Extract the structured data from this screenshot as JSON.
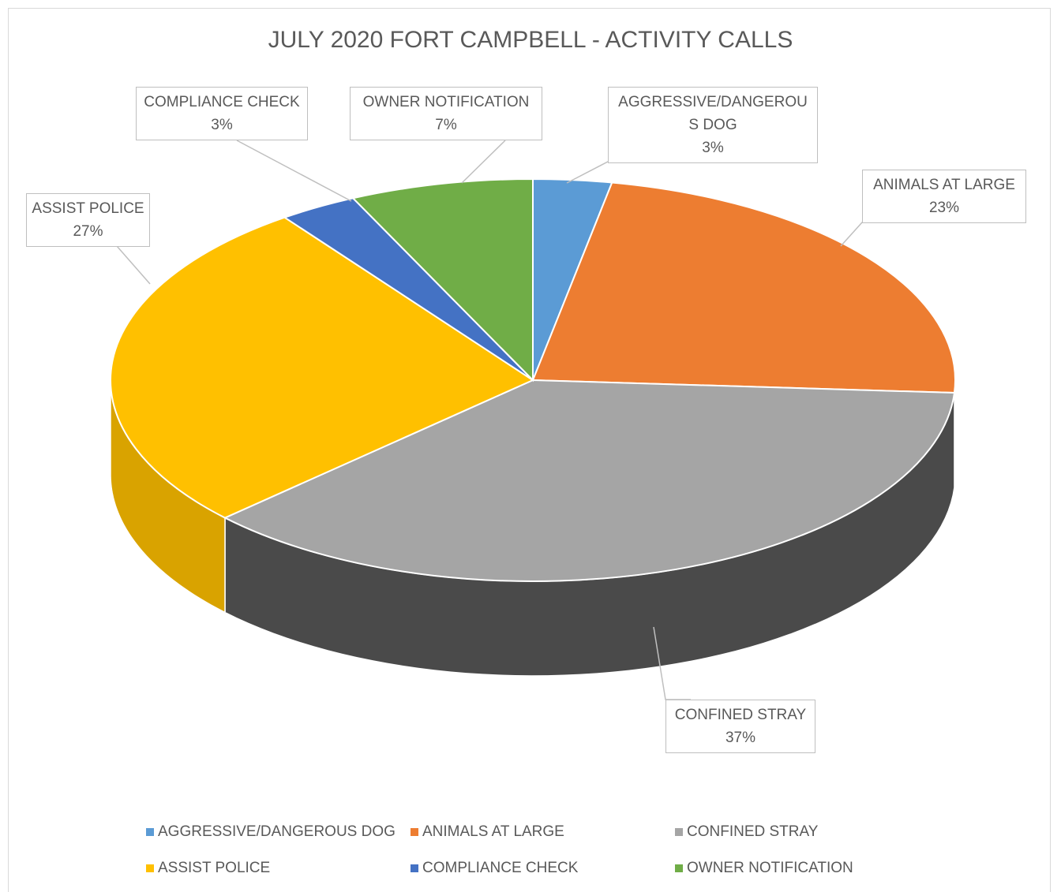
{
  "chart_data": {
    "type": "pie3d",
    "title": "JULY 2020 FORT CAMPBELL - ACTIVITY CALLS",
    "categories": [
      "AGGRESSIVE/DANGEROUS DOG",
      "ANIMALS AT LARGE",
      "CONFINED STRAY",
      "ASSIST POLICE",
      "COMPLIANCE CHECK",
      "OWNER NOTIFICATION"
    ],
    "values": [
      3,
      23,
      37,
      27,
      3,
      7
    ],
    "value_labels": [
      "3%",
      "23%",
      "37%",
      "27%",
      "3%",
      "7%"
    ],
    "colors": [
      "#5b9bd5",
      "#ed7d31",
      "#a5a5a5",
      "#ffc000",
      "#4472c4",
      "#70ad47"
    ],
    "legend": "bottom"
  }
}
